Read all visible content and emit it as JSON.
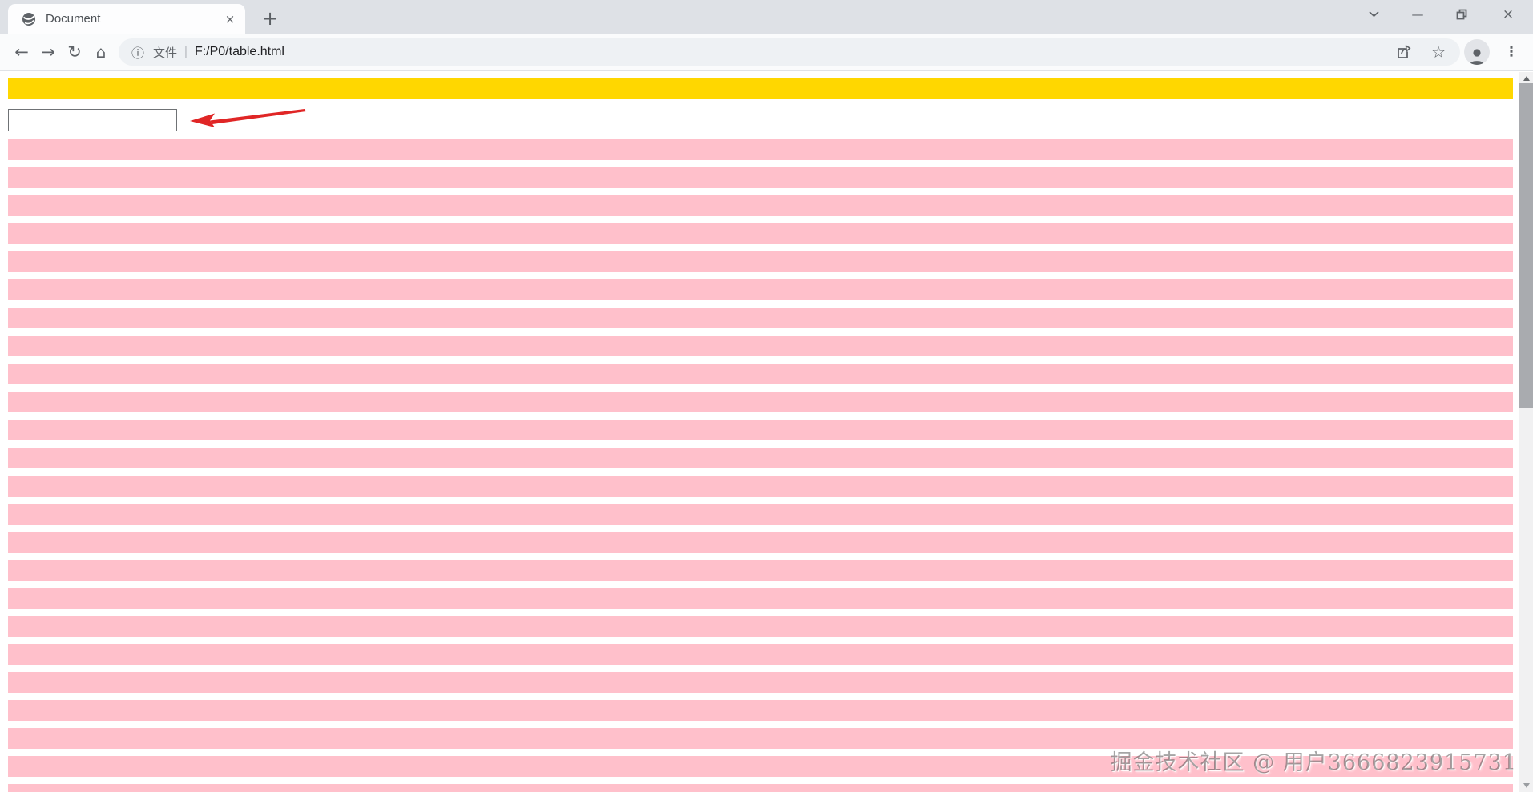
{
  "browser": {
    "tab_title": "Document",
    "address": {
      "prefix": "文件",
      "separator": "|",
      "url": "F:/P0/table.html"
    }
  },
  "icons": {
    "back": "←",
    "forward": "→",
    "reload": "↻",
    "home": "⌂",
    "info": "ⓘ",
    "star": "☆",
    "menu_dots": "⋮",
    "new_tab": "+",
    "tab_close": "×",
    "minimize": "—",
    "window_close": "×"
  },
  "page": {
    "row_count": 24,
    "input_value": "",
    "watermark": "掘金技术社区 @ 用户3666823915731",
    "colors": {
      "gold": "#ffd700",
      "pink": "#ffc0cb",
      "red": "#e02626",
      "tabstrip": "#dee1e6",
      "toolbar": "#fafbfc",
      "omnibox": "#eef1f4",
      "icon": "#5f6368",
      "url_text": "#202124",
      "scroll_track": "#f1f1f2",
      "scroll_thumb": "#a9abaf"
    }
  }
}
